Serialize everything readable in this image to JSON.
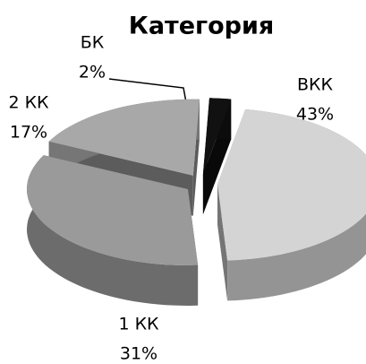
{
  "chart_data": {
    "type": "pie3d",
    "title": "Категория",
    "categories": [
      "ВКК",
      "1 КК",
      "2 КК",
      "БК"
    ],
    "values": [
      43,
      31,
      17,
      2
    ],
    "value_labels": [
      "43%",
      "31%",
      "17%",
      "2%"
    ],
    "colors": [
      "#d4d4d4",
      "#9a9a9a",
      "#a8a8a8",
      "#111111"
    ]
  }
}
